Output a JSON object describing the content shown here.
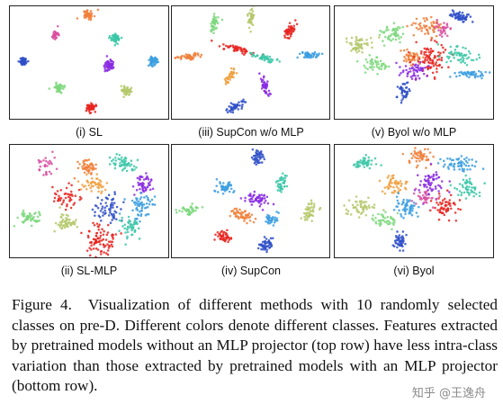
{
  "panels": [
    {
      "caption": "(i) SL"
    },
    {
      "caption": "(iii) SupCon w/o MLP"
    },
    {
      "caption": "(v) Byol w/o MLP"
    },
    {
      "caption": "(ii) SL-MLP"
    },
    {
      "caption": "(iv) SupCon"
    },
    {
      "caption": "(vi) Byol"
    }
  ],
  "caption": {
    "label": "Figure 4.",
    "text": "Visualization of different methods with 10 randomly selected classes on pre-D. Different colors denote different classes. Features extracted by pretrained models without an MLP projector (top row) have less intra-class variation than those extracted by pretrained models with an MLP projector (bottom row)."
  },
  "watermark": "知乎 @王逸舟",
  "colors": {
    "class_palette": [
      "#e8251f",
      "#f07f3a",
      "#b4c86a",
      "#7ed87e",
      "#3cc7a8",
      "#3a9de0",
      "#2e4fc8",
      "#8a2be2",
      "#d94fa0",
      "#f0a040"
    ]
  }
}
